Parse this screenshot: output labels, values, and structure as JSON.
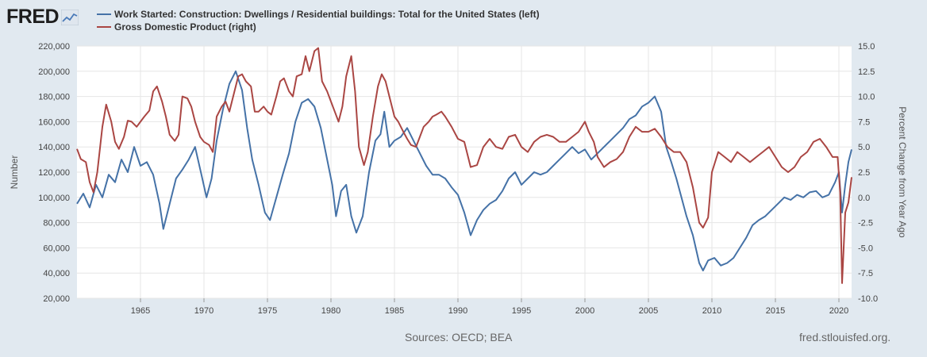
{
  "header": {
    "logo_text": "FRED"
  },
  "footer": {
    "sources": "Sources: OECD; BEA",
    "site": "fred.stlouisfed.org."
  },
  "colors": {
    "blue": "#4572a7",
    "red": "#aa4643",
    "background": "#e1e9f0",
    "plot": "#ffffff"
  },
  "chart_data": {
    "type": "line",
    "title": "",
    "xlabel": "",
    "ylabel_left": "Number",
    "ylabel_right": "Percent Change from Year Ago",
    "x_ticks": [
      1965,
      1970,
      1975,
      1980,
      1985,
      1990,
      1995,
      2000,
      2005,
      2010,
      2015,
      2020
    ],
    "x_range": [
      1960.0,
      2021.0
    ],
    "ylim_left": [
      20000,
      220000
    ],
    "ylim_right": [
      -10.0,
      15.0
    ],
    "y_ticks_left": [
      "20,000",
      "40,000",
      "60,000",
      "80,000",
      "100,000",
      "120,000",
      "140,000",
      "160,000",
      "180,000",
      "200,000",
      "220,000"
    ],
    "y_ticks_right": [
      "-10.0",
      "-7.5",
      "-5.0",
      "-2.5",
      "0.0",
      "2.5",
      "5.0",
      "7.5",
      "10.0",
      "12.5",
      "15.0"
    ],
    "grid": true,
    "legend_position": "top-left",
    "series": [
      {
        "name": "Work Started: Construction: Dwellings / Residential buildings: Total for the United States (left)",
        "axis": "left",
        "color": "#4572a7",
        "points": [
          [
            1960.0,
            95000
          ],
          [
            1960.5,
            103000
          ],
          [
            1961.0,
            92000
          ],
          [
            1961.5,
            110000
          ],
          [
            1962.0,
            100000
          ],
          [
            1962.5,
            118000
          ],
          [
            1963.0,
            112000
          ],
          [
            1963.5,
            130000
          ],
          [
            1964.0,
            120000
          ],
          [
            1964.5,
            140000
          ],
          [
            1965.0,
            125000
          ],
          [
            1965.5,
            128000
          ],
          [
            1966.0,
            118000
          ],
          [
            1966.5,
            95000
          ],
          [
            1966.8,
            75000
          ],
          [
            1967.3,
            95000
          ],
          [
            1967.8,
            115000
          ],
          [
            1968.3,
            122000
          ],
          [
            1968.8,
            130000
          ],
          [
            1969.3,
            140000
          ],
          [
            1969.8,
            118000
          ],
          [
            1970.2,
            100000
          ],
          [
            1970.6,
            115000
          ],
          [
            1971.0,
            145000
          ],
          [
            1971.5,
            170000
          ],
          [
            1972.0,
            190000
          ],
          [
            1972.5,
            200000
          ],
          [
            1973.0,
            185000
          ],
          [
            1973.4,
            155000
          ],
          [
            1973.8,
            130000
          ],
          [
            1974.3,
            110000
          ],
          [
            1974.8,
            88000
          ],
          [
            1975.2,
            82000
          ],
          [
            1975.7,
            100000
          ],
          [
            1976.2,
            118000
          ],
          [
            1976.7,
            135000
          ],
          [
            1977.2,
            160000
          ],
          [
            1977.7,
            175000
          ],
          [
            1978.2,
            178000
          ],
          [
            1978.7,
            172000
          ],
          [
            1979.2,
            155000
          ],
          [
            1979.7,
            130000
          ],
          [
            1980.1,
            110000
          ],
          [
            1980.4,
            85000
          ],
          [
            1980.8,
            105000
          ],
          [
            1981.2,
            110000
          ],
          [
            1981.6,
            85000
          ],
          [
            1982.0,
            72000
          ],
          [
            1982.5,
            85000
          ],
          [
            1983.0,
            120000
          ],
          [
            1983.5,
            145000
          ],
          [
            1983.9,
            150000
          ],
          [
            1984.2,
            168000
          ],
          [
            1984.6,
            140000
          ],
          [
            1985.0,
            145000
          ],
          [
            1985.5,
            148000
          ],
          [
            1986.0,
            155000
          ],
          [
            1986.5,
            145000
          ],
          [
            1987.0,
            135000
          ],
          [
            1987.5,
            125000
          ],
          [
            1988.0,
            118000
          ],
          [
            1988.5,
            118000
          ],
          [
            1989.0,
            115000
          ],
          [
            1989.5,
            108000
          ],
          [
            1990.0,
            102000
          ],
          [
            1990.5,
            88000
          ],
          [
            1991.0,
            70000
          ],
          [
            1991.5,
            82000
          ],
          [
            1992.0,
            90000
          ],
          [
            1992.5,
            95000
          ],
          [
            1993.0,
            98000
          ],
          [
            1993.5,
            105000
          ],
          [
            1994.0,
            115000
          ],
          [
            1994.5,
            120000
          ],
          [
            1995.0,
            110000
          ],
          [
            1995.5,
            115000
          ],
          [
            1996.0,
            120000
          ],
          [
            1996.5,
            118000
          ],
          [
            1997.0,
            120000
          ],
          [
            1997.5,
            125000
          ],
          [
            1998.0,
            130000
          ],
          [
            1998.5,
            135000
          ],
          [
            1999.0,
            140000
          ],
          [
            1999.5,
            135000
          ],
          [
            2000.0,
            138000
          ],
          [
            2000.5,
            130000
          ],
          [
            2001.0,
            135000
          ],
          [
            2001.5,
            140000
          ],
          [
            2002.0,
            145000
          ],
          [
            2002.5,
            150000
          ],
          [
            2003.0,
            155000
          ],
          [
            2003.5,
            162000
          ],
          [
            2004.0,
            165000
          ],
          [
            2004.5,
            172000
          ],
          [
            2005.0,
            175000
          ],
          [
            2005.5,
            180000
          ],
          [
            2006.0,
            168000
          ],
          [
            2006.4,
            140000
          ],
          [
            2006.8,
            128000
          ],
          [
            2007.2,
            115000
          ],
          [
            2007.6,
            100000
          ],
          [
            2008.0,
            85000
          ],
          [
            2008.5,
            70000
          ],
          [
            2009.0,
            48000
          ],
          [
            2009.3,
            42000
          ],
          [
            2009.7,
            50000
          ],
          [
            2010.2,
            52000
          ],
          [
            2010.7,
            46000
          ],
          [
            2011.2,
            48000
          ],
          [
            2011.7,
            52000
          ],
          [
            2012.2,
            60000
          ],
          [
            2012.7,
            68000
          ],
          [
            2013.2,
            78000
          ],
          [
            2013.7,
            82000
          ],
          [
            2014.2,
            85000
          ],
          [
            2014.7,
            90000
          ],
          [
            2015.2,
            95000
          ],
          [
            2015.7,
            100000
          ],
          [
            2016.2,
            98000
          ],
          [
            2016.7,
            102000
          ],
          [
            2017.2,
            100000
          ],
          [
            2017.7,
            104000
          ],
          [
            2018.2,
            105000
          ],
          [
            2018.7,
            100000
          ],
          [
            2019.2,
            102000
          ],
          [
            2019.7,
            112000
          ],
          [
            2020.0,
            120000
          ],
          [
            2020.25,
            88000
          ],
          [
            2020.5,
            110000
          ],
          [
            2020.75,
            128000
          ],
          [
            2021.0,
            138000
          ]
        ]
      },
      {
        "name": "Gross Domestic Product (right)",
        "axis": "right",
        "color": "#aa4643",
        "points": [
          [
            1960.0,
            4.8
          ],
          [
            1960.3,
            3.8
          ],
          [
            1960.7,
            3.5
          ],
          [
            1961.0,
            1.5
          ],
          [
            1961.3,
            0.5
          ],
          [
            1961.6,
            2.5
          ],
          [
            1962.0,
            7.0
          ],
          [
            1962.3,
            9.2
          ],
          [
            1962.7,
            7.5
          ],
          [
            1963.0,
            5.5
          ],
          [
            1963.3,
            4.8
          ],
          [
            1963.7,
            6.0
          ],
          [
            1964.0,
            7.6
          ],
          [
            1964.3,
            7.5
          ],
          [
            1964.7,
            7.0
          ],
          [
            1965.0,
            7.5
          ],
          [
            1965.3,
            8.0
          ],
          [
            1965.7,
            8.6
          ],
          [
            1966.0,
            10.5
          ],
          [
            1966.3,
            11.0
          ],
          [
            1966.7,
            9.5
          ],
          [
            1967.0,
            8.0
          ],
          [
            1967.3,
            6.2
          ],
          [
            1967.7,
            5.6
          ],
          [
            1968.0,
            6.2
          ],
          [
            1968.3,
            10.0
          ],
          [
            1968.7,
            9.8
          ],
          [
            1969.0,
            9.0
          ],
          [
            1969.3,
            7.5
          ],
          [
            1969.7,
            6.0
          ],
          [
            1970.0,
            5.5
          ],
          [
            1970.4,
            5.2
          ],
          [
            1970.7,
            4.5
          ],
          [
            1971.0,
            8.0
          ],
          [
            1971.4,
            9.0
          ],
          [
            1971.7,
            9.5
          ],
          [
            1972.0,
            8.5
          ],
          [
            1972.4,
            10.5
          ],
          [
            1972.7,
            12.0
          ],
          [
            1973.0,
            12.2
          ],
          [
            1973.3,
            11.5
          ],
          [
            1973.7,
            11.0
          ],
          [
            1974.0,
            8.5
          ],
          [
            1974.3,
            8.5
          ],
          [
            1974.7,
            9.0
          ],
          [
            1975.0,
            8.5
          ],
          [
            1975.3,
            8.2
          ],
          [
            1975.7,
            10.0
          ],
          [
            1976.0,
            11.5
          ],
          [
            1976.3,
            11.8
          ],
          [
            1976.7,
            10.5
          ],
          [
            1977.0,
            10.0
          ],
          [
            1977.3,
            12.0
          ],
          [
            1977.7,
            12.2
          ],
          [
            1978.0,
            14.0
          ],
          [
            1978.3,
            12.5
          ],
          [
            1978.7,
            14.5
          ],
          [
            1979.0,
            14.8
          ],
          [
            1979.3,
            11.5
          ],
          [
            1979.7,
            10.5
          ],
          [
            1980.0,
            9.5
          ],
          [
            1980.3,
            8.5
          ],
          [
            1980.6,
            7.5
          ],
          [
            1980.9,
            9.0
          ],
          [
            1981.2,
            12.0
          ],
          [
            1981.6,
            14.0
          ],
          [
            1981.9,
            10.5
          ],
          [
            1982.2,
            5.0
          ],
          [
            1982.6,
            3.2
          ],
          [
            1982.9,
            4.5
          ],
          [
            1983.3,
            8.0
          ],
          [
            1983.7,
            11.0
          ],
          [
            1984.0,
            12.2
          ],
          [
            1984.3,
            11.5
          ],
          [
            1984.7,
            9.5
          ],
          [
            1985.0,
            8.0
          ],
          [
            1985.3,
            7.5
          ],
          [
            1985.7,
            6.5
          ],
          [
            1986.0,
            5.8
          ],
          [
            1986.3,
            5.2
          ],
          [
            1986.7,
            5.0
          ],
          [
            1987.0,
            6.0
          ],
          [
            1987.3,
            7.0
          ],
          [
            1987.7,
            7.5
          ],
          [
            1988.0,
            8.0
          ],
          [
            1988.3,
            8.2
          ],
          [
            1988.7,
            8.5
          ],
          [
            1989.0,
            8.0
          ],
          [
            1989.5,
            7.0
          ],
          [
            1990.0,
            5.8
          ],
          [
            1990.5,
            5.5
          ],
          [
            1991.0,
            3.0
          ],
          [
            1991.5,
            3.2
          ],
          [
            1992.0,
            5.0
          ],
          [
            1992.5,
            5.8
          ],
          [
            1993.0,
            5.0
          ],
          [
            1993.5,
            4.8
          ],
          [
            1994.0,
            6.0
          ],
          [
            1994.5,
            6.2
          ],
          [
            1995.0,
            5.0
          ],
          [
            1995.5,
            4.5
          ],
          [
            1996.0,
            5.5
          ],
          [
            1996.5,
            6.0
          ],
          [
            1997.0,
            6.2
          ],
          [
            1997.5,
            6.0
          ],
          [
            1998.0,
            5.5
          ],
          [
            1998.5,
            5.5
          ],
          [
            1999.0,
            6.0
          ],
          [
            1999.5,
            6.5
          ],
          [
            2000.0,
            7.5
          ],
          [
            2000.3,
            6.5
          ],
          [
            2000.7,
            5.5
          ],
          [
            2001.0,
            4.0
          ],
          [
            2001.5,
            3.0
          ],
          [
            2002.0,
            3.5
          ],
          [
            2002.5,
            3.8
          ],
          [
            2003.0,
            4.5
          ],
          [
            2003.5,
            6.0
          ],
          [
            2004.0,
            7.0
          ],
          [
            2004.5,
            6.5
          ],
          [
            2005.0,
            6.5
          ],
          [
            2005.5,
            6.8
          ],
          [
            2006.0,
            6.0
          ],
          [
            2006.5,
            5.0
          ],
          [
            2007.0,
            4.5
          ],
          [
            2007.5,
            4.5
          ],
          [
            2008.0,
            3.5
          ],
          [
            2008.5,
            1.0
          ],
          [
            2009.0,
            -2.5
          ],
          [
            2009.3,
            -3.0
          ],
          [
            2009.7,
            -2.0
          ],
          [
            2010.0,
            2.5
          ],
          [
            2010.5,
            4.5
          ],
          [
            2011.0,
            4.0
          ],
          [
            2011.5,
            3.5
          ],
          [
            2012.0,
            4.5
          ],
          [
            2012.5,
            4.0
          ],
          [
            2013.0,
            3.5
          ],
          [
            2013.5,
            4.0
          ],
          [
            2014.0,
            4.5
          ],
          [
            2014.5,
            5.0
          ],
          [
            2015.0,
            4.0
          ],
          [
            2015.5,
            3.0
          ],
          [
            2016.0,
            2.5
          ],
          [
            2016.5,
            3.0
          ],
          [
            2017.0,
            4.0
          ],
          [
            2017.5,
            4.5
          ],
          [
            2018.0,
            5.5
          ],
          [
            2018.5,
            5.8
          ],
          [
            2019.0,
            5.0
          ],
          [
            2019.5,
            4.0
          ],
          [
            2019.9,
            4.0
          ],
          [
            2020.1,
            0.5
          ],
          [
            2020.25,
            -8.5
          ],
          [
            2020.5,
            -1.5
          ],
          [
            2020.75,
            -0.5
          ],
          [
            2021.0,
            2.0
          ]
        ]
      }
    ]
  }
}
